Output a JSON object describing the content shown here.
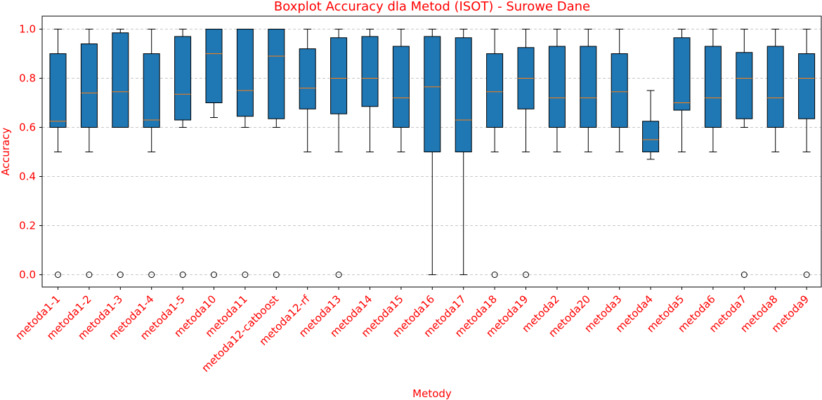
{
  "chart_data": {
    "type": "boxplot",
    "title": "Boxplot Accuracy dla Metod (ISOT) - Surowe Dane",
    "xlabel": "Metody",
    "ylabel": "Accuracy",
    "ylim": [
      -0.05,
      1.05
    ],
    "yticks": [
      0.0,
      0.2,
      0.4,
      0.6,
      0.8,
      1.0
    ],
    "ytick_labels": [
      "0.0",
      "0.2",
      "0.4",
      "0.6",
      "0.8",
      "1.0"
    ],
    "grid": "y-dashed",
    "colors": {
      "box": "#1f77b4",
      "median": "#ff7f0e",
      "text": "#ff0000",
      "grid": "#c8c8c8"
    },
    "categories": [
      "metoda1-1",
      "metoda1-2",
      "metoda1-3",
      "metoda1-4",
      "metoda1-5",
      "metoda10",
      "metoda11",
      "metoda12-catboost",
      "metoda12-rf",
      "metoda13",
      "metoda14",
      "metoda15",
      "metoda16",
      "metoda17",
      "metoda18",
      "metoda19",
      "metoda2",
      "metoda20",
      "metoda3",
      "metoda4",
      "metoda5",
      "metoda6",
      "metoda7",
      "metoda8",
      "metoda9"
    ],
    "boxes": [
      {
        "whislo": 0.5,
        "q1": 0.6,
        "med": 0.625,
        "q3": 0.9,
        "whishi": 1.0,
        "fliers": [
          0.0
        ]
      },
      {
        "whislo": 0.5,
        "q1": 0.6,
        "med": 0.74,
        "q3": 0.94,
        "whishi": 1.0,
        "fliers": [
          0.0
        ]
      },
      {
        "whislo": 0.6,
        "q1": 0.6,
        "med": 0.745,
        "q3": 0.985,
        "whishi": 1.0,
        "fliers": [
          0.0
        ]
      },
      {
        "whislo": 0.5,
        "q1": 0.6,
        "med": 0.63,
        "q3": 0.9,
        "whishi": 1.0,
        "fliers": [
          0.0
        ]
      },
      {
        "whislo": 0.6,
        "q1": 0.63,
        "med": 0.735,
        "q3": 0.97,
        "whishi": 1.0,
        "fliers": [
          0.0
        ]
      },
      {
        "whislo": 0.64,
        "q1": 0.7,
        "med": 0.9,
        "q3": 1.0,
        "whishi": 1.0,
        "fliers": [
          0.0
        ]
      },
      {
        "whislo": 0.6,
        "q1": 0.645,
        "med": 0.75,
        "q3": 1.0,
        "whishi": 1.0,
        "fliers": [
          0.0
        ]
      },
      {
        "whislo": 0.6,
        "q1": 0.635,
        "med": 0.89,
        "q3": 1.0,
        "whishi": 1.0,
        "fliers": [
          0.0
        ]
      },
      {
        "whislo": 0.5,
        "q1": 0.675,
        "med": 0.76,
        "q3": 0.92,
        "whishi": 1.0,
        "fliers": []
      },
      {
        "whislo": 0.5,
        "q1": 0.655,
        "med": 0.8,
        "q3": 0.965,
        "whishi": 1.0,
        "fliers": [
          0.0
        ]
      },
      {
        "whislo": 0.5,
        "q1": 0.685,
        "med": 0.8,
        "q3": 0.97,
        "whishi": 1.0,
        "fliers": []
      },
      {
        "whislo": 0.5,
        "q1": 0.6,
        "med": 0.72,
        "q3": 0.93,
        "whishi": 1.0,
        "fliers": []
      },
      {
        "whislo": 0.0,
        "q1": 0.5,
        "med": 0.765,
        "q3": 0.97,
        "whishi": 1.0,
        "fliers": []
      },
      {
        "whislo": 0.0,
        "q1": 0.5,
        "med": 0.63,
        "q3": 0.965,
        "whishi": 1.0,
        "fliers": []
      },
      {
        "whislo": 0.5,
        "q1": 0.6,
        "med": 0.745,
        "q3": 0.9,
        "whishi": 1.0,
        "fliers": [
          0.0
        ]
      },
      {
        "whislo": 0.5,
        "q1": 0.675,
        "med": 0.8,
        "q3": 0.925,
        "whishi": 1.0,
        "fliers": [
          0.0
        ]
      },
      {
        "whislo": 0.5,
        "q1": 0.6,
        "med": 0.72,
        "q3": 0.93,
        "whishi": 1.0,
        "fliers": []
      },
      {
        "whislo": 0.5,
        "q1": 0.6,
        "med": 0.72,
        "q3": 0.93,
        "whishi": 1.0,
        "fliers": []
      },
      {
        "whislo": 0.5,
        "q1": 0.6,
        "med": 0.745,
        "q3": 0.9,
        "whishi": 1.0,
        "fliers": []
      },
      {
        "whislo": 0.47,
        "q1": 0.5,
        "med": 0.55,
        "q3": 0.625,
        "whishi": 0.75,
        "fliers": []
      },
      {
        "whislo": 0.5,
        "q1": 0.67,
        "med": 0.7,
        "q3": 0.965,
        "whishi": 1.0,
        "fliers": []
      },
      {
        "whislo": 0.5,
        "q1": 0.6,
        "med": 0.72,
        "q3": 0.93,
        "whishi": 1.0,
        "fliers": []
      },
      {
        "whislo": 0.6,
        "q1": 0.635,
        "med": 0.8,
        "q3": 0.905,
        "whishi": 1.0,
        "fliers": [
          0.0
        ]
      },
      {
        "whislo": 0.5,
        "q1": 0.6,
        "med": 0.72,
        "q3": 0.93,
        "whishi": 1.0,
        "fliers": []
      },
      {
        "whislo": 0.5,
        "q1": 0.635,
        "med": 0.8,
        "q3": 0.9,
        "whishi": 1.0,
        "fliers": [
          0.0
        ]
      }
    ]
  }
}
